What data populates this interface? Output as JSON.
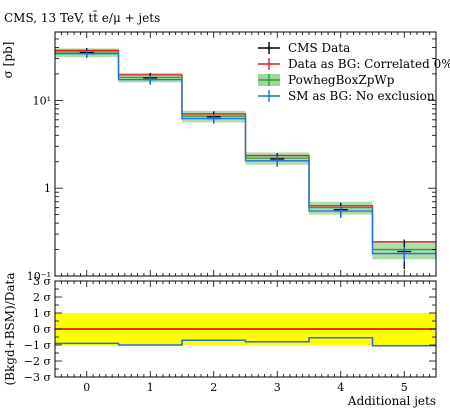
{
  "header": {
    "left": "CMS, 13 TeV, tt̄ e/μ + jets"
  },
  "colors": {
    "data": "#000000",
    "correlated": "#e41a1c",
    "powheg": "#2ca02c",
    "powheg_band": "#9fd69f",
    "sm": "#1f6fe5",
    "yellow_band": "#ffff00",
    "ratio_line": "#cc0000"
  },
  "chart_data": [
    {
      "type": "line",
      "subtype": "histogram-step",
      "ylabel": "σ [pb]",
      "yscale": "log",
      "ylim": [
        0.1,
        60
      ],
      "xlim": [
        -0.5,
        5.5
      ],
      "ytick_labels": [
        "10⁻¹",
        "1",
        "10¹"
      ],
      "bins": [
        {
          "lo": -0.5,
          "hi": 0.5
        },
        {
          "lo": 0.5,
          "hi": 1.5
        },
        {
          "lo": 1.5,
          "hi": 2.5
        },
        {
          "lo": 2.5,
          "hi": 3.5
        },
        {
          "lo": 3.5,
          "hi": 4.5
        },
        {
          "lo": 4.5,
          "hi": 5.5
        }
      ],
      "legend_position": "top-right",
      "series": [
        {
          "name": "CMS Data",
          "kind": "points",
          "color": "#000000",
          "x": [
            0,
            1,
            2,
            3,
            4,
            5
          ],
          "values": [
            35,
            18,
            6.5,
            2.15,
            0.57,
            0.19
          ],
          "errors": [
            4.5,
            2.5,
            1.0,
            0.35,
            0.11,
            0.07
          ]
        },
        {
          "name": "Data as BG: Correlated 0%",
          "kind": "step",
          "color": "#e41a1c",
          "x": [
            0,
            1,
            2,
            3,
            4,
            5
          ],
          "values": [
            37,
            19.5,
            7.0,
            2.35,
            0.63,
            0.245
          ]
        },
        {
          "name": "PowhegBoxZpWp",
          "kind": "band",
          "color": "#2ca02c",
          "x": [
            0,
            1,
            2,
            3,
            4,
            5
          ],
          "values": [
            35.5,
            18.2,
            6.6,
            2.2,
            0.6,
            0.2
          ],
          "band_low": [
            31,
            16,
            5.6,
            1.85,
            0.5,
            0.155
          ],
          "band_high": [
            39,
            20.5,
            7.6,
            2.55,
            0.7,
            0.245
          ]
        },
        {
          "name": "SM as BG: No exclusion",
          "kind": "points-step",
          "color": "#1f6fe5",
          "x": [
            0,
            1,
            2,
            3,
            4,
            5
          ],
          "values": [
            34,
            17.2,
            6.2,
            2.05,
            0.55,
            0.18
          ],
          "errors": [
            3.5,
            2.2,
            0.8,
            0.3,
            0.09,
            0.035
          ]
        }
      ]
    },
    {
      "type": "line",
      "subtype": "ratio",
      "ylabel": "(Bkgd+BSM)/Data",
      "xlabel": "Additional jets",
      "ylim": [
        -3,
        3
      ],
      "yticks": [
        -3,
        -2,
        -1,
        0,
        1,
        2,
        3
      ],
      "ytick_labels": [
        "−3 σ",
        "−2 σ",
        "−1 σ",
        "0 σ",
        "1 σ",
        "2 σ",
        "3 σ"
      ],
      "xticks": [
        0,
        1,
        2,
        3,
        4,
        5
      ],
      "xtick_labels": [
        "0",
        "1",
        "2",
        "3",
        "4",
        "5"
      ],
      "band": {
        "low": -1,
        "high": 1,
        "color": "#ffff00"
      },
      "series": [
        {
          "name": "Data as BG: Correlated 0%",
          "color": "#cc0000",
          "values": [
            0,
            0,
            0,
            0,
            0,
            0
          ]
        },
        {
          "name": "SM as BG: No exclusion",
          "color": "#1f6fe5",
          "values": [
            -0.9,
            -1.0,
            -0.7,
            -0.8,
            -0.55,
            -1.05
          ]
        }
      ]
    }
  ]
}
